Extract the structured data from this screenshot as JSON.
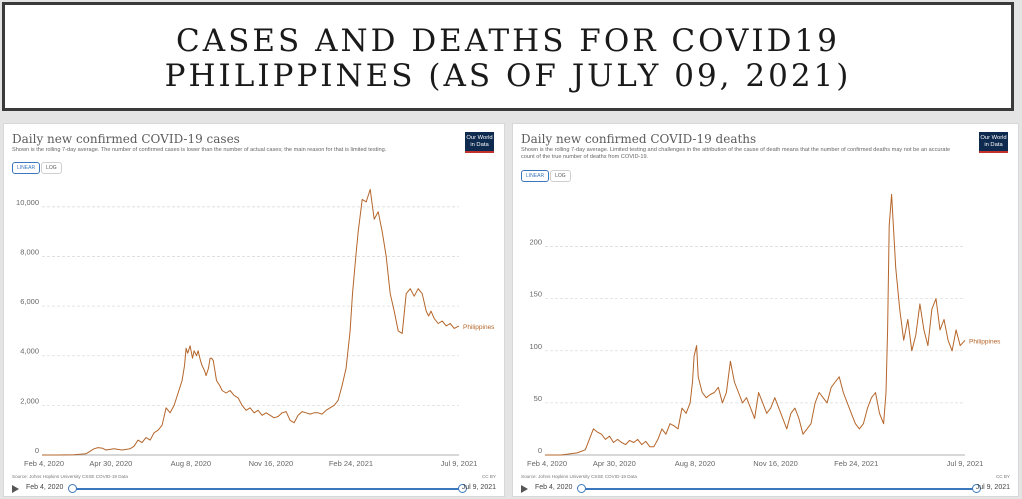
{
  "banner": {
    "line1": "CASES AND DEATHS FOR COVID19",
    "line2": "PHILIPPINES (AS OF JULY 09, 2021)"
  },
  "colors": {
    "series": "#b5652a",
    "accent": "#3b77bd",
    "grid": "#dddddd"
  },
  "charts": [
    {
      "title": "Daily new confirmed COVID-19 cases",
      "subtitle": "Shown is the rolling 7-day average. The number of confirmed cases is lower than the number of actual cases; the main reason for that is limited testing.",
      "logo": "Our World in Data",
      "scale_buttons": [
        "LINEAR",
        "LOG"
      ],
      "source": "Source: Johns Hopkins University CSSE COVID-19 Data",
      "license": "CC BY",
      "timeline": {
        "start": "Feb 4, 2020",
        "end": "Jul 9, 2021"
      },
      "series_label": "Philippines"
    },
    {
      "title": "Daily new confirmed COVID-19 deaths",
      "subtitle": "Shown is the rolling 7-day average. Limited testing and challenges in the attribution of the cause of death means that the number of confirmed deaths may not be an accurate count of the true number of deaths from COVID-19.",
      "logo": "Our World in Data",
      "scale_buttons": [
        "LINEAR",
        "LOG"
      ],
      "source": "Source: Johns Hopkins University CSSE COVID-19 Data",
      "license": "CC BY",
      "timeline": {
        "start": "Feb 4, 2020",
        "end": "Jul 9, 2021"
      },
      "series_label": "Philippines"
    }
  ],
  "chart_data": [
    {
      "type": "line",
      "title": "Daily new confirmed COVID-19 cases",
      "xlabel": "",
      "ylabel": "",
      "ylim": [
        0,
        11000
      ],
      "yticks": [
        0,
        2000,
        4000,
        6000,
        8000,
        10000
      ],
      "ytick_labels": [
        "0",
        "2,000",
        "4,000",
        "6,000",
        "8,000",
        "10,000"
      ],
      "xtick_labels": [
        "Feb 4, 2020",
        "Apr 30, 2020",
        "Aug 8, 2020",
        "Nov 16, 2020",
        "Feb 24, 2021",
        "Jul 9, 2021"
      ],
      "xtick_days": [
        0,
        86,
        186,
        286,
        386,
        521
      ],
      "xlim": [
        0,
        521
      ],
      "grid": true,
      "series": [
        {
          "name": "Philippines",
          "x": [
            0,
            20,
            40,
            55,
            60,
            65,
            70,
            75,
            80,
            90,
            100,
            110,
            115,
            120,
            125,
            130,
            135,
            140,
            145,
            150,
            155,
            160,
            165,
            170,
            175,
            178,
            180,
            182,
            185,
            188,
            190,
            193,
            195,
            198,
            200,
            203,
            205,
            208,
            210,
            212,
            214,
            216,
            218,
            220,
            222,
            225,
            230,
            235,
            240,
            245,
            250,
            255,
            260,
            265,
            270,
            275,
            280,
            285,
            290,
            295,
            300,
            305,
            310,
            315,
            320,
            325,
            330,
            335,
            340,
            345,
            350,
            355,
            360,
            365,
            370,
            375,
            380,
            385,
            388,
            392,
            395,
            400,
            405,
            410,
            415,
            420,
            425,
            430,
            435,
            440,
            445,
            450,
            455,
            460,
            465,
            470,
            475,
            480,
            483,
            486,
            490,
            495,
            500,
            505,
            510,
            515,
            521
          ],
          "values": [
            0,
            0,
            10,
            50,
            150,
            250,
            300,
            280,
            200,
            250,
            200,
            250,
            350,
            600,
            500,
            700,
            600,
            900,
            1000,
            1200,
            1900,
            1700,
            2000,
            2500,
            3000,
            3600,
            4300,
            4100,
            4400,
            3900,
            4200,
            4000,
            4200,
            3800,
            3600,
            3400,
            3200,
            3500,
            3900,
            3900,
            3800,
            3400,
            3000,
            2900,
            2800,
            2600,
            2500,
            2600,
            2400,
            2300,
            2000,
            1800,
            1900,
            1700,
            1800,
            1600,
            1700,
            1600,
            1500,
            1550,
            1700,
            1750,
            1400,
            1300,
            1600,
            1750,
            1700,
            1650,
            1700,
            1700,
            1650,
            1800,
            1900,
            2000,
            2200,
            2800,
            3500,
            5000,
            6500,
            8000,
            9000,
            10300,
            10200,
            10700,
            9500,
            9800,
            9000,
            8000,
            6500,
            5800,
            5000,
            4900,
            6500,
            6700,
            6400,
            6700,
            6500,
            5800,
            5600,
            5800,
            5500,
            5300,
            5400,
            5200,
            5300,
            5100,
            5200
          ]
        }
      ]
    },
    {
      "type": "line",
      "title": "Daily new confirmed COVID-19 deaths",
      "xlabel": "",
      "ylabel": "",
      "ylim": [
        0,
        260
      ],
      "yticks": [
        0,
        50,
        100,
        150,
        200
      ],
      "ytick_labels": [
        "0",
        "50",
        "100",
        "150",
        "200"
      ],
      "xtick_labels": [
        "Feb 4, 2020",
        "Apr 30, 2020",
        "Aug 8, 2020",
        "Nov 16, 2020",
        "Feb 24, 2021",
        "Jul 9, 2021"
      ],
      "xtick_days": [
        0,
        86,
        186,
        286,
        386,
        521
      ],
      "xlim": [
        0,
        521
      ],
      "grid": true,
      "series": [
        {
          "name": "Philippines",
          "x": [
            0,
            20,
            40,
            50,
            55,
            60,
            65,
            70,
            75,
            80,
            85,
            90,
            95,
            100,
            105,
            110,
            115,
            120,
            125,
            130,
            135,
            140,
            145,
            150,
            155,
            160,
            165,
            170,
            175,
            180,
            183,
            185,
            188,
            190,
            195,
            200,
            205,
            210,
            215,
            220,
            225,
            230,
            235,
            240,
            245,
            250,
            255,
            260,
            265,
            270,
            275,
            280,
            285,
            290,
            295,
            300,
            305,
            310,
            315,
            320,
            325,
            330,
            335,
            340,
            345,
            350,
            355,
            360,
            365,
            370,
            375,
            380,
            385,
            390,
            395,
            400,
            405,
            410,
            415,
            420,
            423,
            425,
            427,
            430,
            435,
            440,
            445,
            450,
            455,
            460,
            465,
            470,
            475,
            480,
            485,
            490,
            495,
            500,
            505,
            510,
            515,
            521
          ],
          "values": [
            0,
            0,
            2,
            5,
            15,
            25,
            22,
            20,
            15,
            18,
            12,
            15,
            12,
            10,
            14,
            12,
            15,
            10,
            13,
            8,
            8,
            15,
            25,
            20,
            30,
            28,
            25,
            45,
            40,
            50,
            70,
            95,
            105,
            75,
            60,
            55,
            58,
            60,
            65,
            50,
            60,
            90,
            70,
            60,
            50,
            55,
            45,
            35,
            60,
            50,
            40,
            45,
            55,
            45,
            35,
            25,
            40,
            45,
            35,
            20,
            25,
            30,
            50,
            60,
            55,
            50,
            65,
            70,
            75,
            60,
            50,
            40,
            30,
            25,
            30,
            45,
            55,
            60,
            40,
            30,
            60,
            120,
            220,
            250,
            180,
            140,
            110,
            130,
            100,
            115,
            145,
            120,
            105,
            140,
            150,
            120,
            130,
            110,
            100,
            120,
            105,
            110
          ]
        }
      ]
    }
  ]
}
